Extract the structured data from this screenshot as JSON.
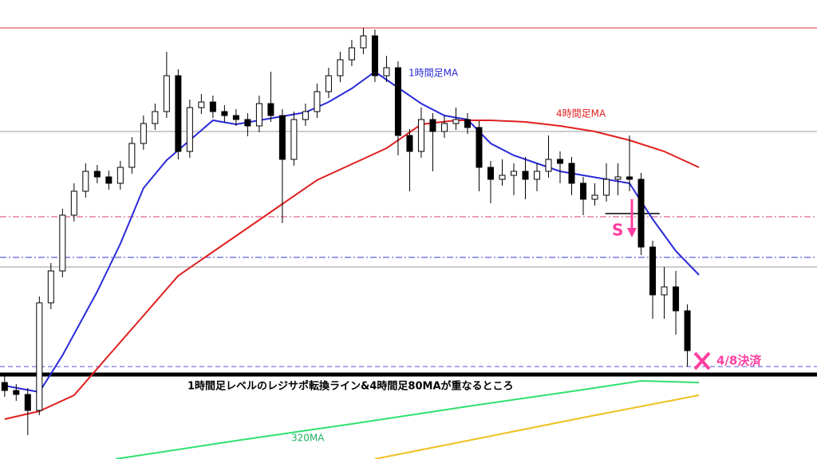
{
  "chart_data": {
    "type": "candlestick",
    "xlim": [
      -0.4,
      70.2
    ],
    "ylim": [
      0,
      576
    ],
    "up_color": "#ffffff",
    "down_color": "#000000",
    "outline_color": "#000000",
    "candles": [
      [
        96,
        104,
        78,
        86
      ],
      [
        86,
        94,
        73,
        81
      ],
      [
        81,
        89,
        30,
        61
      ],
      [
        61,
        204,
        55,
        196
      ],
      [
        196,
        246,
        188,
        236
      ],
      [
        236,
        314,
        228,
        306
      ],
      [
        306,
        346,
        298,
        336
      ],
      [
        336,
        371,
        328,
        361
      ],
      [
        361,
        369,
        346,
        354
      ],
      [
        354,
        362,
        338,
        346
      ],
      [
        346,
        374,
        338,
        366
      ],
      [
        366,
        404,
        358,
        396
      ],
      [
        396,
        431,
        388,
        421
      ],
      [
        421,
        446,
        413,
        436
      ],
      [
        436,
        511,
        428,
        481
      ],
      [
        481,
        489,
        376,
        386
      ],
      [
        386,
        451,
        378,
        441
      ],
      [
        441,
        458,
        433,
        448
      ],
      [
        448,
        456,
        428,
        436
      ],
      [
        436,
        444,
        423,
        431
      ],
      [
        431,
        439,
        418,
        426
      ],
      [
        426,
        434,
        405,
        418
      ],
      [
        418,
        456,
        410,
        446
      ],
      [
        446,
        486,
        423,
        431
      ],
      [
        431,
        439,
        296,
        376
      ],
      [
        376,
        436,
        368,
        426
      ],
      [
        426,
        446,
        418,
        436
      ],
      [
        436,
        471,
        428,
        461
      ],
      [
        461,
        491,
        453,
        481
      ],
      [
        481,
        511,
        473,
        501
      ],
      [
        501,
        526,
        493,
        516
      ],
      [
        516,
        541,
        508,
        531
      ],
      [
        531,
        539,
        473,
        481
      ],
      [
        481,
        506,
        473,
        491
      ],
      [
        491,
        499,
        381,
        406
      ],
      [
        406,
        414,
        336,
        386
      ],
      [
        386,
        441,
        378,
        426
      ],
      [
        426,
        434,
        361,
        411
      ],
      [
        411,
        431,
        403,
        421
      ],
      [
        421,
        441,
        413,
        426
      ],
      [
        426,
        434,
        408,
        416
      ],
      [
        416,
        424,
        336,
        366
      ],
      [
        366,
        374,
        321,
        351
      ],
      [
        351,
        376,
        343,
        356
      ],
      [
        356,
        371,
        331,
        361
      ],
      [
        361,
        379,
        326,
        351
      ],
      [
        351,
        371,
        336,
        361
      ],
      [
        361,
        406,
        353,
        376
      ],
      [
        376,
        386,
        346,
        371
      ],
      [
        371,
        379,
        331,
        346
      ],
      [
        346,
        354,
        306,
        326
      ],
      [
        326,
        346,
        318,
        331
      ],
      [
        331,
        371,
        323,
        351
      ],
      [
        351,
        371,
        331,
        354
      ],
      [
        354,
        406,
        336,
        351
      ],
      [
        351,
        359,
        256,
        266
      ],
      [
        266,
        274,
        176,
        206
      ],
      [
        206,
        241,
        176,
        216
      ],
      [
        216,
        236,
        156,
        186
      ],
      [
        186,
        194,
        116,
        136
      ]
    ],
    "series": [
      {
        "name": "1時間足MA",
        "color": "#2a2ad8",
        "x": [
          0,
          3,
          5,
          8,
          10,
          12,
          14,
          16,
          18,
          20,
          22,
          24,
          26,
          28,
          30,
          32,
          34,
          36,
          38,
          40,
          42,
          44,
          46,
          48,
          50,
          52,
          54,
          56,
          58,
          60
        ],
        "values": [
          92,
          84,
          130,
          210,
          270,
          340,
          375,
          400,
          425,
          420,
          425,
          430,
          435,
          448,
          465,
          486,
          466,
          446,
          431,
          426,
          396,
          381,
          371,
          361,
          356,
          351,
          346,
          301,
          261,
          231
        ]
      },
      {
        "name": "4時間足MA",
        "color": "#e02020",
        "x": [
          0,
          3,
          6,
          9,
          12,
          15,
          18,
          21,
          24,
          27,
          30,
          33,
          36,
          39,
          42,
          45,
          48,
          51,
          54,
          57,
          60
        ],
        "values": [
          50,
          60,
          80,
          130,
          180,
          230,
          260,
          290,
          320,
          350,
          370,
          390,
          420,
          425,
          425,
          423,
          418,
          411,
          400,
          386,
          366
        ]
      },
      {
        "name": "320MA",
        "color": "#30e070",
        "x": [
          9.6,
          20,
          30,
          40,
          50,
          55,
          60
        ],
        "values": [
          0,
          23,
          44,
          66,
          87,
          98,
          96
        ]
      },
      {
        "color": "#f0c020",
        "x": [
          32,
          40,
          50,
          60
        ],
        "values": [
          0,
          23,
          52,
          80
        ]
      }
    ],
    "levels": [
      {
        "value": 541,
        "color": "#e03030",
        "style": "solid",
        "width": 1
      },
      {
        "value": 411,
        "color": "#999999",
        "style": "solid",
        "width": 1
      },
      {
        "value": 304,
        "color": "#d04070",
        "style": "dashdot",
        "width": 1
      },
      {
        "value": 253,
        "color": "#3a3ad0",
        "style": "dashdot",
        "width": 1
      },
      {
        "value": 241,
        "color": "#999999",
        "style": "solid",
        "width": 1
      },
      {
        "value": 116,
        "color": "#5050e0",
        "style": "dashed",
        "width": 1
      },
      {
        "value": 106,
        "color": "#000000",
        "style": "solid",
        "width": 5
      }
    ],
    "segments": [
      {
        "x": [
          51.9,
          56.6
        ],
        "value": 308,
        "color": "#000000"
      }
    ],
    "annotations": [
      {
        "text": "1時間足MA",
        "color": "#2a2ad8"
      },
      {
        "text": "4時間足MA",
        "color": "#e02020"
      },
      {
        "text": "320MA",
        "color": "#20b060"
      },
      {
        "text": "S",
        "color": "#ff3fa0"
      },
      {
        "text": "4/8決済",
        "color": "#ff3fa0"
      },
      {
        "text": "1時間足レベルのレジサポ転換ライン&4時間足80MAが重なるところ",
        "color": "#000000"
      }
    ]
  }
}
